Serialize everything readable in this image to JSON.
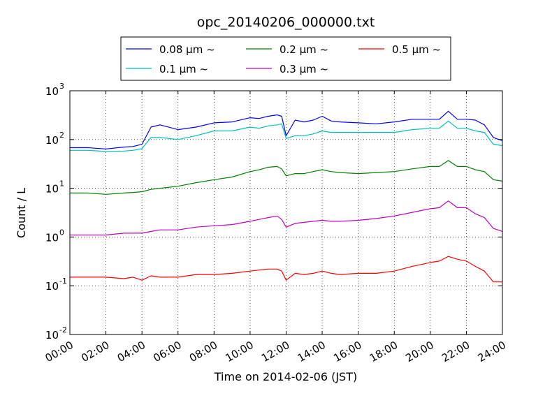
{
  "chart_data": {
    "type": "line",
    "title": "opc_20140206_000000.txt",
    "xlabel": "Time on 2014-02-06 (JST)",
    "ylabel": "Count / L",
    "x_unit": "hours",
    "xlim": [
      0,
      24
    ],
    "ylim": [
      0.01,
      1000
    ],
    "y_scale": "log",
    "grid": true,
    "legend_position": "top",
    "x_ticks": [
      {
        "value": 0,
        "label": "00:00"
      },
      {
        "value": 2,
        "label": "02:00"
      },
      {
        "value": 4,
        "label": "04:00"
      },
      {
        "value": 6,
        "label": "06:00"
      },
      {
        "value": 8,
        "label": "08:00"
      },
      {
        "value": 10,
        "label": "10:00"
      },
      {
        "value": 12,
        "label": "12:00"
      },
      {
        "value": 14,
        "label": "14:00"
      },
      {
        "value": 16,
        "label": "16:00"
      },
      {
        "value": 18,
        "label": "18:00"
      },
      {
        "value": 20,
        "label": "20:00"
      },
      {
        "value": 22,
        "label": "22:00"
      },
      {
        "value": 24,
        "label": "24:00"
      }
    ],
    "y_ticks": [
      {
        "value": 0.01,
        "base": "10",
        "exp": "-2"
      },
      {
        "value": 0.1,
        "base": "10",
        "exp": "-1"
      },
      {
        "value": 1,
        "base": "10",
        "exp": "0"
      },
      {
        "value": 10,
        "base": "10",
        "exp": "1"
      },
      {
        "value": 100,
        "base": "10",
        "exp": "2"
      },
      {
        "value": 1000,
        "base": "10",
        "exp": "3"
      }
    ],
    "x": [
      0,
      1,
      2,
      3,
      3.5,
      4,
      4.5,
      5,
      6,
      7,
      8,
      9,
      10,
      10.5,
      11,
      11.5,
      11.75,
      12,
      12.5,
      13,
      13.5,
      14,
      14.5,
      15,
      16,
      17,
      18,
      19,
      20,
      20.5,
      21,
      21.5,
      22,
      22.5,
      23,
      23.5,
      24
    ],
    "series": [
      {
        "name": "0.08 μm ~",
        "color": "#0000ff",
        "values": [
          68,
          68,
          64,
          70,
          72,
          80,
          180,
          200,
          160,
          180,
          220,
          230,
          280,
          270,
          300,
          320,
          300,
          120,
          250,
          230,
          250,
          300,
          240,
          230,
          220,
          210,
          230,
          260,
          260,
          260,
          380,
          260,
          260,
          250,
          200,
          110,
          95
        ]
      },
      {
        "name": "0.1 μm ~",
        "color": "#00bfbf",
        "values": [
          60,
          60,
          57,
          58,
          60,
          65,
          110,
          110,
          100,
          120,
          150,
          150,
          180,
          170,
          190,
          200,
          210,
          105,
          120,
          120,
          130,
          150,
          140,
          140,
          140,
          140,
          140,
          160,
          170,
          170,
          240,
          170,
          170,
          150,
          140,
          80,
          75
        ]
      },
      {
        "name": "0.2 μm ~",
        "color": "#008000",
        "values": [
          8,
          8,
          7.5,
          8,
          8.2,
          8.5,
          9.5,
          10,
          11,
          13,
          15,
          17,
          22,
          24,
          27,
          28,
          25,
          18,
          20,
          20,
          22,
          24,
          22,
          21,
          20,
          21,
          22,
          25,
          28,
          28,
          37,
          28,
          28,
          24,
          22,
          15,
          14
        ]
      },
      {
        "name": "0.3 μm ~",
        "color": "#bf00bf",
        "values": [
          1.1,
          1.1,
          1.1,
          1.2,
          1.2,
          1.2,
          1.3,
          1.4,
          1.4,
          1.6,
          1.7,
          1.8,
          2.1,
          2.3,
          2.5,
          2.7,
          2.3,
          1.6,
          1.9,
          2,
          2.1,
          2.2,
          2.1,
          2.1,
          2.2,
          2.4,
          2.7,
          3.2,
          3.8,
          4,
          5.5,
          4,
          4,
          3,
          2.5,
          1.5,
          1.3
        ]
      },
      {
        "name": "0.5 μm ~",
        "color": "#ff0000",
        "values": [
          0.15,
          0.15,
          0.15,
          0.14,
          0.15,
          0.13,
          0.16,
          0.15,
          0.15,
          0.17,
          0.17,
          0.18,
          0.2,
          0.21,
          0.22,
          0.22,
          0.2,
          0.13,
          0.18,
          0.17,
          0.18,
          0.2,
          0.18,
          0.17,
          0.18,
          0.18,
          0.2,
          0.25,
          0.3,
          0.32,
          0.4,
          0.35,
          0.32,
          0.25,
          0.2,
          0.12,
          0.12
        ]
      }
    ]
  }
}
